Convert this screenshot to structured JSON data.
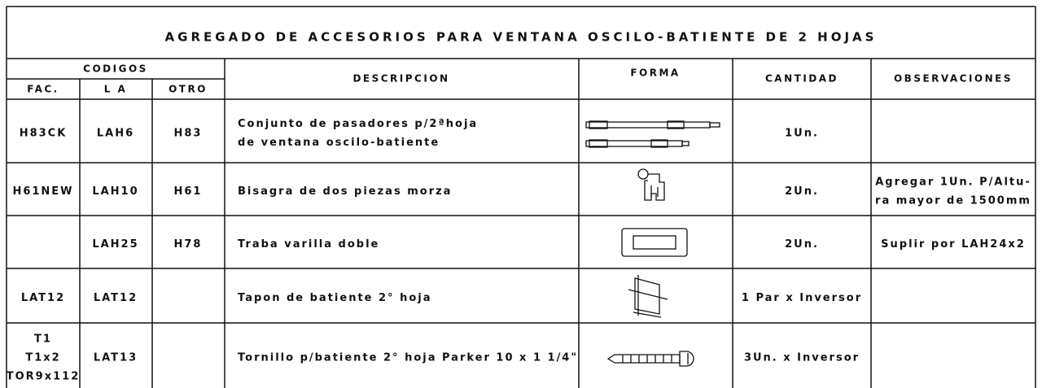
{
  "title": "AGREGADO DE ACCESORIOS PARA VENTANA OSCILO-BATIENTE DE 2 HOJAS",
  "header": {
    "group": "CODIGOS",
    "fac": "FAC.",
    "la": "L A",
    "otro": "OTRO",
    "descripcion": "DESCRIPCION",
    "forma": "FORMA",
    "cantidad": "CANTIDAD",
    "observaciones": "OBSERVACIONES"
  },
  "rows": [
    {
      "fac": [
        "H83CK"
      ],
      "la": "LAH6",
      "otro": "H83",
      "descripcion": [
        "Conjunto de pasadores p/2ªhoja",
        "de ventana  oscilo-batiente"
      ],
      "cantidad": "1Un."
    },
    {
      "fac": [
        "H61NEW"
      ],
      "la": "LAH10",
      "otro": "H61",
      "descripcion": [
        "Bisagra de dos piezas morza"
      ],
      "cantidad": "2Un.",
      "observaciones": [
        "Agregar 1Un. P/Altu-",
        "ra mayor de 1500mm"
      ]
    },
    {
      "la": "LAH25",
      "otro": "H78",
      "descripcion": [
        "Traba varilla doble"
      ],
      "cantidad": "2Un.",
      "observaciones": [
        "Suplir por LAH24x2"
      ]
    },
    {
      "fac": [
        "LAT12"
      ],
      "la": "LAT12",
      "descripcion": [
        "Tapon de batiente 2° hoja"
      ],
      "cantidad": "1 Par x Inversor"
    },
    {
      "fac": [
        "T1",
        "T1x2",
        "TOR9x112"
      ],
      "la": "LAT13",
      "descripcion": [
        "Tornillo p/batiente 2° hoja Parker 10 x 1 1/4\""
      ],
      "cantidad": "3Un. x Inversor"
    }
  ]
}
